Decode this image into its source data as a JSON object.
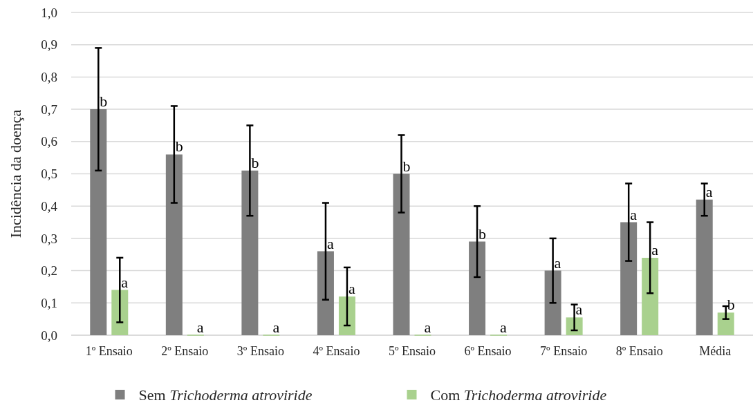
{
  "chart_data": {
    "type": "bar",
    "ylabel": "Incidência da doença",
    "categories": [
      "1º Ensaio",
      "2º Ensaio",
      "3º Ensaio",
      "4º Ensaio",
      "5º Ensaio",
      "6º Ensaio",
      "7º Ensaio",
      "8º Ensaio",
      "Média"
    ],
    "series": [
      {
        "name": "Sem Trichoderma atroviride",
        "color": "#7f7f7f",
        "values": [
          0.7,
          0.56,
          0.51,
          0.26,
          0.5,
          0.29,
          0.2,
          0.35,
          0.42
        ],
        "errors": [
          0.19,
          0.15,
          0.14,
          0.15,
          0.12,
          0.11,
          0.1,
          0.12,
          0.05
        ],
        "value_labels": [
          "b",
          "b",
          "b",
          "a",
          "b",
          "b",
          "a",
          "a",
          "a"
        ]
      },
      {
        "name": "Com Trichoderma atroviride",
        "color": "#a9d18e",
        "values": [
          0.14,
          0,
          0,
          0.12,
          0,
          0,
          0.055,
          0.24,
          0.07
        ],
        "errors": [
          0.1,
          null,
          null,
          0.09,
          null,
          null,
          0.04,
          0.11,
          0.02
        ],
        "value_labels": [
          "a",
          "a",
          "a",
          "a",
          "a",
          "a",
          "a",
          "a",
          "b"
        ]
      }
    ],
    "ylim": [
      0,
      1
    ],
    "yticks": [
      {
        "value": 0,
        "label": "0,0"
      },
      {
        "value": 0.1,
        "label": "0,1"
      },
      {
        "value": 0.2,
        "label": "0,2"
      },
      {
        "value": 0.3,
        "label": "0,3"
      },
      {
        "value": 0.4,
        "label": "0,4"
      },
      {
        "value": 0.5,
        "label": "0,5"
      },
      {
        "value": 0.6,
        "label": "0,6"
      },
      {
        "value": 0.7,
        "label": "0,7"
      },
      {
        "value": 0.8,
        "label": "0,8"
      },
      {
        "value": 0.9,
        "label": "0,9"
      },
      {
        "value": 1,
        "label": "1,0"
      }
    ],
    "grid": "y",
    "legend": "bottom"
  }
}
